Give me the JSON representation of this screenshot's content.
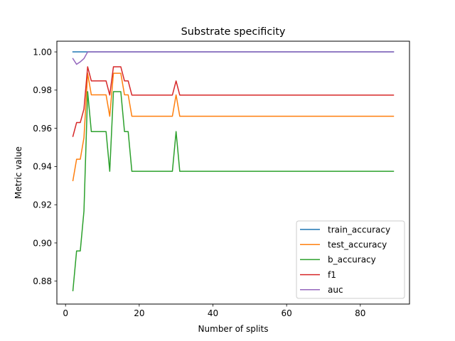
{
  "chart_data": {
    "type": "line",
    "title": "Substrate specificity",
    "xlabel": "Number of splits",
    "ylabel": "Metric value",
    "xlim": [
      -2.35,
      93.35
    ],
    "ylim": [
      0.868,
      1.0056
    ],
    "xticks": [
      0,
      20,
      40,
      60,
      80
    ],
    "yticks": [
      0.88,
      0.9,
      0.92,
      0.94,
      0.96,
      0.98,
      1.0
    ],
    "ytick_labels": [
      "0.88",
      "0.90",
      "0.92",
      "0.94",
      "0.96",
      "0.98",
      "1.00"
    ],
    "grid": false,
    "legend_position": "bottom-right",
    "x": [
      2,
      3,
      4,
      5,
      6,
      7,
      8,
      9,
      10,
      11,
      12,
      13,
      14,
      15,
      16,
      17,
      18,
      19,
      20,
      21,
      22,
      23,
      24,
      25,
      26,
      27,
      28,
      29,
      30,
      31,
      32,
      33,
      34,
      35,
      36,
      37,
      38,
      39,
      40,
      41,
      42,
      43,
      44,
      45,
      46,
      47,
      48,
      49,
      50,
      51,
      52,
      53,
      54,
      55,
      56,
      57,
      58,
      59,
      60,
      61,
      62,
      63,
      64,
      65,
      66,
      67,
      68,
      69,
      70,
      71,
      72,
      73,
      74,
      75,
      76,
      77,
      78,
      79,
      80,
      81,
      82,
      83,
      84,
      85,
      86,
      87,
      88,
      89
    ],
    "series": [
      {
        "name": "train_accuracy",
        "color": "#1f77b4",
        "values": [
          1,
          1,
          1,
          1,
          1,
          1,
          1,
          1,
          1,
          1,
          1,
          1,
          1,
          1,
          1,
          1,
          1,
          1,
          1,
          1,
          1,
          1,
          1,
          1,
          1,
          1,
          1,
          1,
          1,
          1,
          1,
          1,
          1,
          1,
          1,
          1,
          1,
          1,
          1,
          1,
          1,
          1,
          1,
          1,
          1,
          1,
          1,
          1,
          1,
          1,
          1,
          1,
          1,
          1,
          1,
          1,
          1,
          1,
          1,
          1,
          1,
          1,
          1,
          1,
          1,
          1,
          1,
          1,
          1,
          1,
          1,
          1,
          1,
          1,
          1,
          1,
          1,
          1,
          1,
          1,
          1,
          1,
          1,
          1,
          1,
          1,
          1,
          1
        ]
      },
      {
        "name": "test_accuracy",
        "color": "#ff7f0e",
        "values": [
          0.9326,
          0.9438,
          0.9438,
          0.9551,
          0.9888,
          0.9775,
          0.9775,
          0.9775,
          0.9775,
          0.9775,
          0.9663,
          0.9888,
          0.9888,
          0.9888,
          0.9775,
          0.9775,
          0.9663,
          0.9663,
          0.9663,
          0.9663,
          0.9663,
          0.9663,
          0.9663,
          0.9663,
          0.9663,
          0.9663,
          0.9663,
          0.9663,
          0.9775,
          0.9663,
          0.9663,
          0.9663,
          0.9663,
          0.9663,
          0.9663,
          0.9663,
          0.9663,
          0.9663,
          0.9663,
          0.9663,
          0.9663,
          0.9663,
          0.9663,
          0.9663,
          0.9663,
          0.9663,
          0.9663,
          0.9663,
          0.9663,
          0.9663,
          0.9663,
          0.9663,
          0.9663,
          0.9663,
          0.9663,
          0.9663,
          0.9663,
          0.9663,
          0.9663,
          0.9663,
          0.9663,
          0.9663,
          0.9663,
          0.9663,
          0.9663,
          0.9663,
          0.9663,
          0.9663,
          0.9663,
          0.9663,
          0.9663,
          0.9663,
          0.9663,
          0.9663,
          0.9663,
          0.9663,
          0.9663,
          0.9663,
          0.9663,
          0.9663,
          0.9663,
          0.9663,
          0.9663,
          0.9663,
          0.9663,
          0.9663,
          0.9663,
          0.9663
        ]
      },
      {
        "name": "b_accuracy",
        "color": "#2ca02c",
        "values": [
          0.875,
          0.8958,
          0.8958,
          0.9167,
          0.9792,
          0.9583,
          0.9583,
          0.9583,
          0.9583,
          0.9583,
          0.9375,
          0.9792,
          0.9792,
          0.9792,
          0.9583,
          0.9583,
          0.9375,
          0.9375,
          0.9375,
          0.9375,
          0.9375,
          0.9375,
          0.9375,
          0.9375,
          0.9375,
          0.9375,
          0.9375,
          0.9375,
          0.9583,
          0.9375,
          0.9375,
          0.9375,
          0.9375,
          0.9375,
          0.9375,
          0.9375,
          0.9375,
          0.9375,
          0.9375,
          0.9375,
          0.9375,
          0.9375,
          0.9375,
          0.9375,
          0.9375,
          0.9375,
          0.9375,
          0.9375,
          0.9375,
          0.9375,
          0.9375,
          0.9375,
          0.9375,
          0.9375,
          0.9375,
          0.9375,
          0.9375,
          0.9375,
          0.9375,
          0.9375,
          0.9375,
          0.9375,
          0.9375,
          0.9375,
          0.9375,
          0.9375,
          0.9375,
          0.9375,
          0.9375,
          0.9375,
          0.9375,
          0.9375,
          0.9375,
          0.9375,
          0.9375,
          0.9375,
          0.9375,
          0.9375,
          0.9375,
          0.9375,
          0.9375,
          0.9375,
          0.9375,
          0.9375,
          0.9375,
          0.9375,
          0.9375,
          0.9375
        ]
      },
      {
        "name": "f1",
        "color": "#d62728",
        "values": [
          0.9558,
          0.963,
          0.963,
          0.9701,
          0.9922,
          0.9848,
          0.9848,
          0.9848,
          0.9848,
          0.9848,
          0.9774,
          0.9922,
          0.9922,
          0.9922,
          0.9848,
          0.9848,
          0.9774,
          0.9774,
          0.9774,
          0.9774,
          0.9774,
          0.9774,
          0.9774,
          0.9774,
          0.9774,
          0.9774,
          0.9774,
          0.9774,
          0.9848,
          0.9774,
          0.9774,
          0.9774,
          0.9774,
          0.9774,
          0.9774,
          0.9774,
          0.9774,
          0.9774,
          0.9774,
          0.9774,
          0.9774,
          0.9774,
          0.9774,
          0.9774,
          0.9774,
          0.9774,
          0.9774,
          0.9774,
          0.9774,
          0.9774,
          0.9774,
          0.9774,
          0.9774,
          0.9774,
          0.9774,
          0.9774,
          0.9774,
          0.9774,
          0.9774,
          0.9774,
          0.9774,
          0.9774,
          0.9774,
          0.9774,
          0.9774,
          0.9774,
          0.9774,
          0.9774,
          0.9774,
          0.9774,
          0.9774,
          0.9774,
          0.9774,
          0.9774,
          0.9774,
          0.9774,
          0.9774,
          0.9774,
          0.9774,
          0.9774,
          0.9774,
          0.9774,
          0.9774,
          0.9774,
          0.9774,
          0.9774,
          0.9774,
          0.9774
        ]
      },
      {
        "name": "auc",
        "color": "#9467bd",
        "values": [
          0.9965,
          0.9935,
          0.9948,
          0.9965,
          1,
          1,
          1,
          1,
          1,
          1,
          1,
          1,
          1,
          1,
          1,
          1,
          1,
          1,
          1,
          1,
          1,
          1,
          1,
          1,
          1,
          1,
          1,
          1,
          1,
          1,
          1,
          1,
          1,
          1,
          1,
          1,
          1,
          1,
          1,
          1,
          1,
          1,
          1,
          1,
          1,
          1,
          1,
          1,
          1,
          1,
          1,
          1,
          1,
          1,
          1,
          1,
          1,
          1,
          1,
          1,
          1,
          1,
          1,
          1,
          1,
          1,
          1,
          1,
          1,
          1,
          1,
          1,
          1,
          1,
          1,
          1,
          1,
          1,
          1,
          1,
          1,
          1,
          1,
          1,
          1,
          1,
          1,
          1
        ]
      }
    ]
  }
}
